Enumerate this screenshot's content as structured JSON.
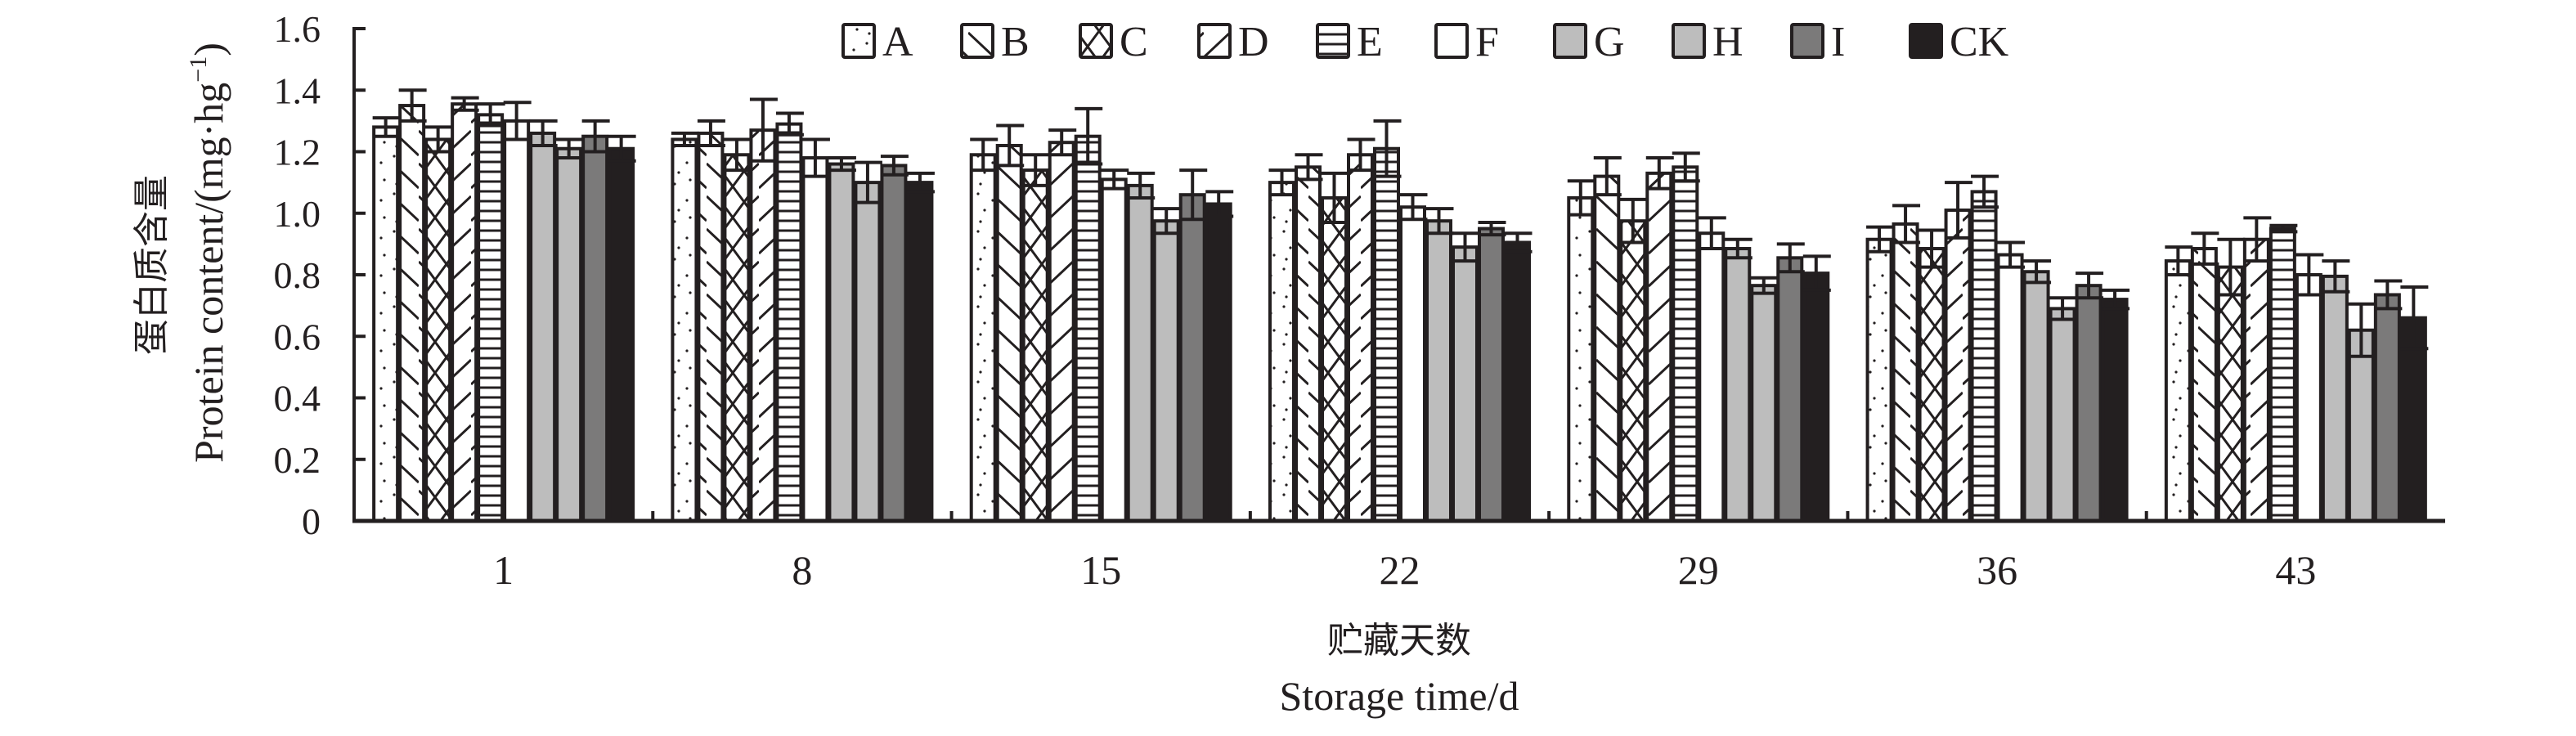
{
  "chart_data": {
    "type": "bar",
    "title": "",
    "xlabel_cn": "贮藏天数",
    "xlabel": "Storage time/d",
    "ylabel_cn": "蛋白质含量",
    "ylabel": "Protein content/(mg·hg",
    "ylabel_sup": "−1",
    "ylabel_close": ")",
    "ylim": [
      0,
      1.6
    ],
    "yticks": [
      0,
      0.2,
      0.4,
      0.6,
      0.8,
      1.0,
      1.2,
      1.4,
      1.6
    ],
    "ytick_labels": [
      "0",
      "0.2",
      "0.4",
      "0.6",
      "0.8",
      "1.0",
      "1.2",
      "1.4",
      "1.6"
    ],
    "categories": [
      "1",
      "8",
      "15",
      "22",
      "29",
      "36",
      "43"
    ],
    "legend_position": "top-center",
    "grid": false,
    "series": [
      {
        "name": "A",
        "fill": "dots",
        "color": "#ffffff",
        "values": [
          1.28,
          1.24,
          1.19,
          1.1,
          1.05,
          0.915,
          0.845
        ],
        "errors": [
          0.03,
          0.02,
          0.05,
          0.04,
          0.055,
          0.04,
          0.045
        ]
      },
      {
        "name": "B",
        "fill": "backslash",
        "color": "#ffffff",
        "values": [
          1.35,
          1.26,
          1.22,
          1.15,
          1.12,
          0.965,
          0.885
        ],
        "errors": [
          0.05,
          0.04,
          0.065,
          0.04,
          0.06,
          0.06,
          0.05
        ]
      },
      {
        "name": "C",
        "fill": "cross",
        "color": "#ffffff",
        "values": [
          1.24,
          1.19,
          1.14,
          1.05,
          0.975,
          0.885,
          0.825
        ],
        "errors": [
          0.04,
          0.05,
          0.05,
          0.08,
          0.07,
          0.06,
          0.09
        ]
      },
      {
        "name": "D",
        "fill": "slash",
        "color": "#ffffff",
        "values": [
          1.355,
          1.27,
          1.23,
          1.19,
          1.13,
          1.01,
          0.915
        ],
        "errors": [
          0.02,
          0.1,
          0.04,
          0.05,
          0.05,
          0.09,
          0.07
        ]
      },
      {
        "name": "E",
        "fill": "hlines",
        "color": "#ffffff",
        "values": [
          1.32,
          1.29,
          1.25,
          1.21,
          1.15,
          1.07,
          0.95
        ],
        "errors": [
          0.035,
          0.035,
          0.09,
          0.09,
          0.045,
          0.05,
          0.01
        ]
      },
      {
        "name": "F",
        "fill": "solid",
        "color": "#ffffff",
        "values": [
          1.3,
          1.18,
          1.11,
          1.02,
          0.935,
          0.865,
          0.8
        ],
        "errors": [
          0.06,
          0.06,
          0.03,
          0.04,
          0.05,
          0.04,
          0.065
        ]
      },
      {
        "name": "G",
        "fill": "solid",
        "color": "#bdbdbd",
        "values": [
          1.26,
          1.16,
          1.09,
          0.975,
          0.885,
          0.81,
          0.795
        ],
        "errors": [
          0.04,
          0.02,
          0.04,
          0.04,
          0.03,
          0.035,
          0.05
        ]
      },
      {
        "name": "H",
        "fill": "solid",
        "color": "#bdbdbd",
        "values": [
          1.21,
          1.1,
          0.975,
          0.89,
          0.765,
          0.69,
          0.62
        ],
        "errors": [
          0.03,
          0.065,
          0.04,
          0.045,
          0.025,
          0.035,
          0.085
        ]
      },
      {
        "name": "I",
        "fill": "solid",
        "color": "#7b7a7a",
        "values": [
          1.25,
          1.155,
          1.06,
          0.95,
          0.855,
          0.765,
          0.735
        ],
        "errors": [
          0.05,
          0.03,
          0.08,
          0.02,
          0.045,
          0.04,
          0.045
        ]
      },
      {
        "name": "CK",
        "fill": "solid",
        "color": "#231f20",
        "values": [
          1.21,
          1.1,
          1.03,
          0.905,
          0.805,
          0.72,
          0.66
        ],
        "errors": [
          0.04,
          0.03,
          0.04,
          0.03,
          0.055,
          0.03,
          0.1
        ]
      }
    ],
    "line_color": "#231f20"
  }
}
